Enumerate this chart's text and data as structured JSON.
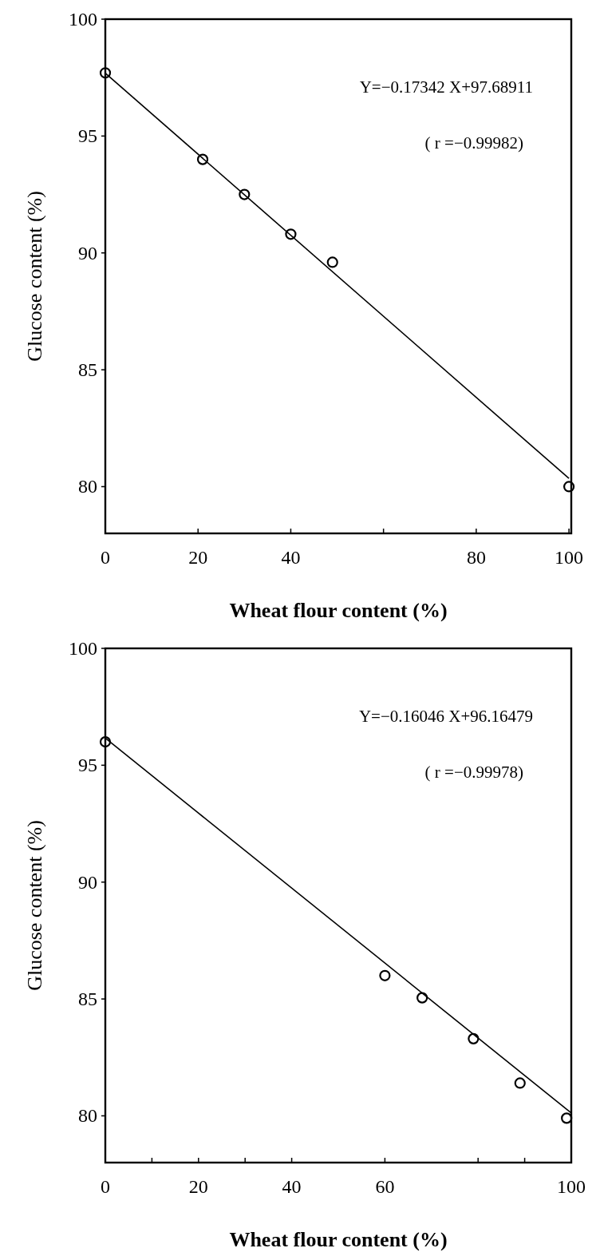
{
  "chart_data": [
    {
      "type": "scatter",
      "xlabel": "Wheat flour content (%)",
      "ylabel": "Glucose content (%)",
      "annotations": [
        "Y=−0.17342  X+97.68911",
        "( r =−0.99982)"
      ],
      "xlim": [
        0,
        100.5
      ],
      "ylim": [
        78,
        100
      ],
      "xticks": [
        0,
        20,
        40,
        {
          "value": 60,
          "label": null
        },
        80,
        100
      ],
      "yticks": [
        80,
        85,
        90,
        95,
        100
      ],
      "grid": false,
      "marker": "circle",
      "series": [
        {
          "color": "#000000",
          "x": [
            0,
            21,
            30,
            40,
            49,
            100
          ],
          "values": [
            97.7,
            94.0,
            92.5,
            90.8,
            89.6,
            80.0
          ]
        },
        {
          "type": "line",
          "marker": "none",
          "line_style": "solid",
          "color": "#000000",
          "x": [
            0,
            100
          ],
          "values": [
            97.69,
            80.35
          ]
        }
      ]
    },
    {
      "type": "scatter",
      "xlabel": "Wheat flour content (%)",
      "ylabel": "Glucose content (%)",
      "annotations": [
        "Y=−0.16046  X+96.16479",
        "( r =−0.99978)"
      ],
      "xlim": [
        0,
        100
      ],
      "ylim": [
        78,
        100
      ],
      "xticks": [
        0,
        {
          "value": 10,
          "label": null
        },
        20,
        {
          "value": 30,
          "label": null
        },
        40,
        60,
        {
          "value": 80,
          "label": null
        },
        {
          "value": 90,
          "label": null
        },
        100
      ],
      "yticks": [
        80,
        85,
        90,
        95,
        100
      ],
      "grid": false,
      "marker": "circle",
      "series": [
        {
          "color": "#000000",
          "x": [
            0,
            60,
            68,
            79,
            89,
            99
          ],
          "values": [
            96.0,
            86.0,
            85.05,
            83.3,
            81.4,
            79.9
          ]
        },
        {
          "type": "line",
          "marker": "none",
          "line_style": "solid",
          "color": "#000000",
          "x": [
            0,
            100
          ],
          "values": [
            96.16,
            80.12
          ]
        }
      ]
    }
  ]
}
